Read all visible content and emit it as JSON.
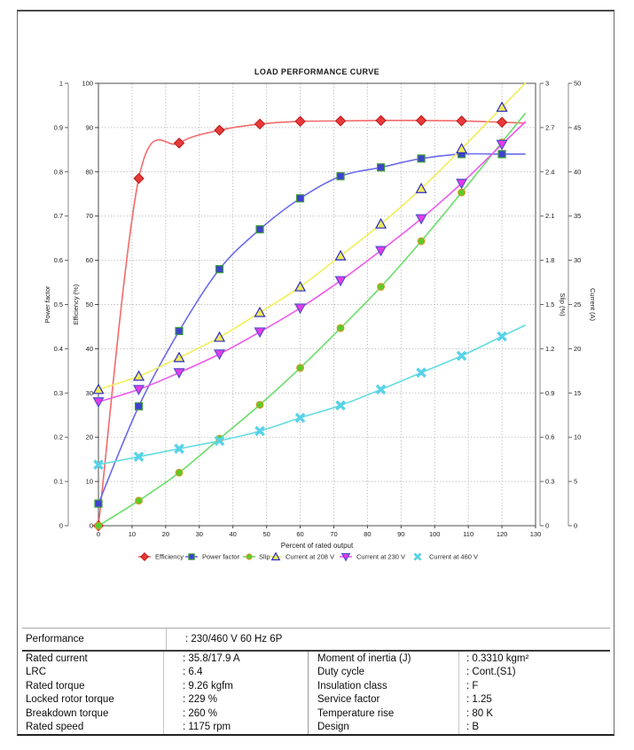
{
  "chart_data": {
    "type": "line",
    "title": "LOAD PERFORMANCE CURVE",
    "xlabel": "Percent of rated output",
    "x_range": [
      0,
      130
    ],
    "x_tick_step": 10,
    "grid": true,
    "legend_position": "bottom",
    "x": [
      0,
      12,
      24,
      36,
      48,
      60,
      72,
      84,
      96,
      108,
      120
    ],
    "axes": [
      {
        "id": "power_factor",
        "label": "Power factor",
        "side": "left-outer",
        "range": [
          0,
          1
        ],
        "step": 0.1
      },
      {
        "id": "efficiency",
        "label": "Efficiency (%)",
        "side": "left",
        "range": [
          0,
          100
        ],
        "step": 10
      },
      {
        "id": "slip",
        "label": "Slip (%)",
        "side": "right",
        "range": [
          0,
          3
        ],
        "step": 0.3
      },
      {
        "id": "current",
        "label": "Current (A)",
        "side": "right-outer",
        "range": [
          0,
          50
        ],
        "step": 5
      }
    ],
    "series": [
      {
        "name": "Efficiency",
        "axis": "efficiency",
        "marker": "diamond",
        "line_color": "#f26a6a",
        "fill": "#e83a3a",
        "stroke": "#bb1a1a",
        "values": [
          0,
          78.5,
          86.5,
          89.4,
          90.8,
          91.4,
          91.5,
          91.6,
          91.6,
          91.5,
          91.2
        ]
      },
      {
        "name": "Power factor",
        "axis": "power_factor",
        "marker": "square",
        "line_color": "#6a6aee",
        "fill": "#4040d0",
        "stroke": "#3a9e3a",
        "values": [
          0.05,
          0.27,
          0.44,
          0.58,
          0.67,
          0.74,
          0.79,
          0.81,
          0.83,
          0.84,
          0.84
        ]
      },
      {
        "name": "Slip",
        "axis": "slip",
        "marker": "circle",
        "line_color": "#6ade6a",
        "fill": "#58cc2a",
        "stroke": "#cc9a22",
        "values": [
          0,
          0.17,
          0.36,
          0.59,
          0.82,
          1.07,
          1.34,
          1.62,
          1.93,
          2.26,
          2.6
        ]
      },
      {
        "name": "Current at 208 V",
        "axis": "current",
        "marker": "triangle-up",
        "line_color": "#f2ee58",
        "fill": "#eeea58",
        "stroke": "#2a2ac8",
        "values": [
          15.4,
          16.9,
          19.0,
          21.3,
          24.1,
          27.0,
          30.5,
          34.1,
          38.1,
          42.6,
          47.3
        ]
      },
      {
        "name": "Current at 230 V",
        "axis": "current",
        "marker": "triangle-down",
        "line_color": "#ee58ee",
        "fill": "#e83ae8",
        "stroke": "#5050cc",
        "values": [
          14.0,
          15.4,
          17.3,
          19.4,
          21.9,
          24.6,
          27.7,
          31.1,
          34.7,
          38.7,
          43.1
        ]
      },
      {
        "name": "Current at 460 V",
        "axis": "current",
        "marker": "x",
        "line_color": "#62dce2",
        "fill": "#58d2e8",
        "stroke": "#58d2e8",
        "values": [
          6.9,
          7.8,
          8.7,
          9.6,
          10.7,
          12.2,
          13.6,
          15.4,
          17.3,
          19.2,
          21.4
        ]
      }
    ]
  },
  "table": {
    "performance_label": "Performance",
    "performance_value": ": 230/460 V 60 Hz 6P",
    "left_rows": [
      {
        "label": "Rated current",
        "value": ": 35.8/17.9 A"
      },
      {
        "label": "LRC",
        "value": ": 6.4"
      },
      {
        "label": "Rated torque",
        "value": ": 9.26 kgfm"
      },
      {
        "label": "Locked rotor torque",
        "value": ": 229 %"
      },
      {
        "label": "Breakdown torque",
        "value": ": 260 %"
      },
      {
        "label": "Rated speed",
        "value": ": 1175 rpm"
      }
    ],
    "right_rows": [
      {
        "label": "Moment of inertia (J)",
        "value": ": 0.3310 kgm²"
      },
      {
        "label": "Duty cycle",
        "value": ": Cont.(S1)"
      },
      {
        "label": "Insulation class",
        "value": ": F"
      },
      {
        "label": "Service factor",
        "value": ": 1.25"
      },
      {
        "label": "Temperature rise",
        "value": ": 80 K"
      },
      {
        "label": "Design",
        "value": ": B"
      }
    ]
  }
}
